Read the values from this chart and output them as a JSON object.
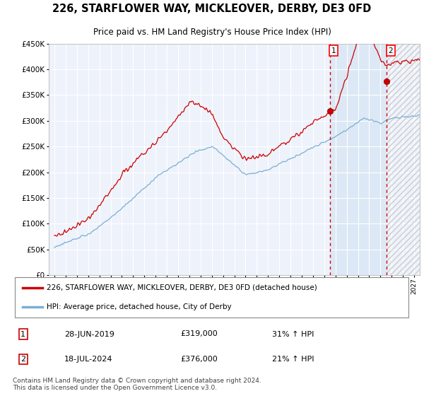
{
  "title": "226, STARFLOWER WAY, MICKLEOVER, DERBY, DE3 0FD",
  "subtitle": "Price paid vs. HM Land Registry's House Price Index (HPI)",
  "legend_label_red": "226, STARFLOWER WAY, MICKLEOVER, DERBY, DE3 0FD (detached house)",
  "legend_label_blue": "HPI: Average price, detached house, City of Derby",
  "purchase1_date": "28-JUN-2019",
  "purchase1_price": "£319,000",
  "purchase1_hpi": "31% ↑ HPI",
  "purchase1_year": 2019.49,
  "purchase1_value": 319000,
  "purchase2_date": "18-JUL-2024",
  "purchase2_price": "£376,000",
  "purchase2_hpi": "21% ↑ HPI",
  "purchase2_year": 2024.54,
  "purchase2_value": 376000,
  "ylim": [
    0,
    450000
  ],
  "xlim": [
    1994.5,
    2027.5
  ],
  "yticks": [
    0,
    50000,
    100000,
    150000,
    200000,
    250000,
    300000,
    350000,
    400000,
    450000
  ],
  "footer": "Contains HM Land Registry data © Crown copyright and database right 2024.\nThis data is licensed under the Open Government Licence v3.0.",
  "bg_color": "#ffffff",
  "plot_bg_color": "#eef2fb",
  "grid_color": "#ffffff",
  "red_color": "#cc0000",
  "blue_color": "#7bafd4",
  "shade_between_color": "#dce8f5",
  "hatch_color": "#cccccc"
}
